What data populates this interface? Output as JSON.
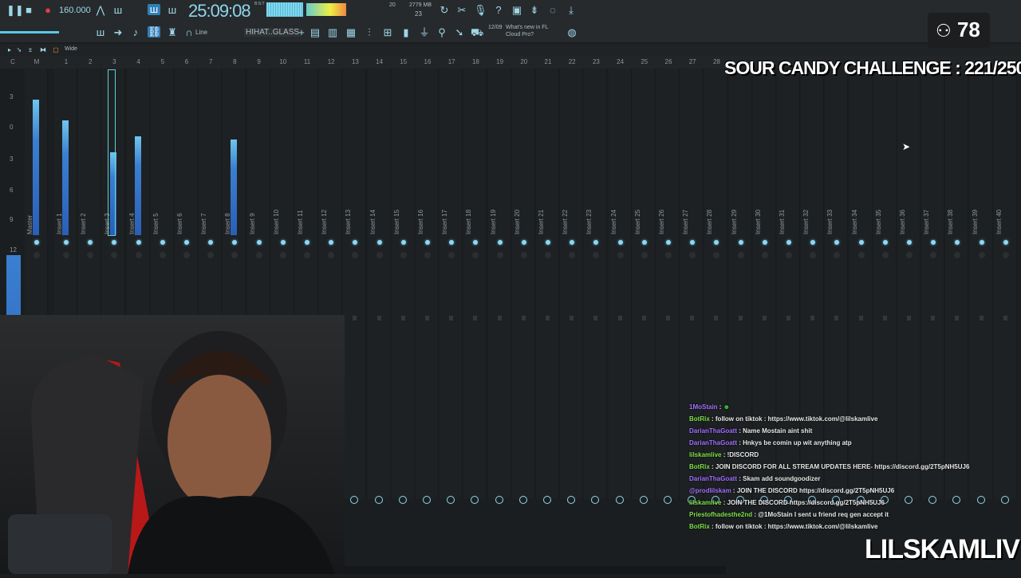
{
  "toolbar": {
    "tempo": "160.000",
    "clock": "25:09:08",
    "clock_sub": "B:S:T",
    "cpu": "20",
    "memory": "2779 MB",
    "polyphony": "23",
    "snap": "Line",
    "pattern": "HIHAT..GLASS",
    "news_date": "12/09",
    "news_text": "What's new in FL Cloud Pro?",
    "view_mode": "Wide"
  },
  "icons": [
    "play-pause-icon",
    "stop-icon",
    "record-icon",
    "metronome-icon",
    "undo-icon",
    "cut-icon",
    "mic-icon",
    "help-icon",
    "save-icon",
    "export-icon",
    "chat-icon",
    "download-icon",
    "link-icon",
    "magnet-icon"
  ],
  "mixer": {
    "selected": "Insert 3",
    "scale": [
      "3",
      "0",
      "3",
      "6",
      "9",
      "12"
    ],
    "numbers": [
      "C",
      "M",
      "1",
      "2",
      "3",
      "4",
      "5",
      "6",
      "7",
      "8",
      "9",
      "10",
      "11",
      "12",
      "13",
      "14",
      "15",
      "16",
      "17",
      "18",
      "19",
      "20",
      "21",
      "22",
      "23",
      "24",
      "25",
      "26",
      "27",
      "28"
    ],
    "channels": [
      "Master",
      "Insert 1",
      "Insert 2",
      "Insert 3",
      "Insert 4",
      "Insert 5",
      "Insert 6",
      "Insert 7",
      "Insert 8",
      "Insert 9",
      "Insert 10",
      "Insert 11",
      "Insert 12",
      "Insert 13",
      "Insert 14",
      "Insert 15",
      "Insert 16",
      "Insert 17",
      "Insert 18",
      "Insert 19",
      "Insert 20",
      "Insert 21",
      "Insert 22",
      "Insert 23",
      "Insert 24",
      "Insert 25",
      "Insert 26",
      "Insert 27",
      "Insert 28",
      "Insert 29",
      "Insert 30",
      "Insert 31",
      "Insert 32",
      "Insert 33",
      "Insert 34",
      "Insert 35",
      "Insert 36",
      "Insert 37",
      "Insert 38",
      "Insert 39",
      "Insert 40"
    ],
    "levels": [
      0.85,
      0.72,
      0,
      0.52,
      0.62,
      0,
      0,
      0,
      0.6,
      0,
      0,
      0,
      0,
      0,
      0,
      0,
      0,
      0,
      0,
      0,
      0,
      0,
      0,
      0,
      0,
      0,
      0,
      0,
      0,
      0,
      0,
      0,
      0,
      0,
      0,
      0,
      0,
      0,
      0,
      0,
      0
    ]
  },
  "overlay": {
    "challenge": "SOUR CANDY CHALLENGE : 221/250",
    "viewers": "78",
    "brand": "LILSKAMLIVE"
  },
  "chat": [
    {
      "user": "1MoStain",
      "text": "",
      "color": "#a070ff"
    },
    {
      "user": "BotRix",
      "text": "follow on tiktok : https://www.tiktok.com/@lilskamlive",
      "color": "#7ee04a"
    },
    {
      "user": "DarianThaGoatt",
      "text": "Name Mostain aint shit",
      "color": "#a070ff"
    },
    {
      "user": "DarianThaGoatt",
      "text": "Hnkys be comin up wit anything atp",
      "color": "#a070ff"
    },
    {
      "user": "lilskamlive",
      "text": "!DISCORD",
      "color": "#7ee04a"
    },
    {
      "user": "BotRix",
      "text": "JOIN DISCORD FOR ALL STREAM UPDATES HERE- https://discord.gg/2T5pNH5UJ6",
      "color": "#7ee04a"
    },
    {
      "user": "DarianThaGoatt",
      "text": "Skam add soundgoodizer",
      "color": "#a070ff"
    },
    {
      "user": "@prodlilskam",
      "text": "JOIN THE DISCORD https://discord.gg/2T5pNH5UJ6",
      "color": "#a070ff"
    },
    {
      "user": "lilskamlive",
      "text": "JOIN THE DISCORD https://discord.gg/2T5pNH5UJ6",
      "color": "#7ee04a"
    },
    {
      "user": "Priestofhadesthe2nd",
      "text": "@1MoStain I sent u friend req gen accept it",
      "color": "#7ee04a"
    },
    {
      "user": "BotRix",
      "text": "follow on tiktok : https://www.tiktok.com/@lilskamlive",
      "color": "#7ee04a"
    }
  ]
}
